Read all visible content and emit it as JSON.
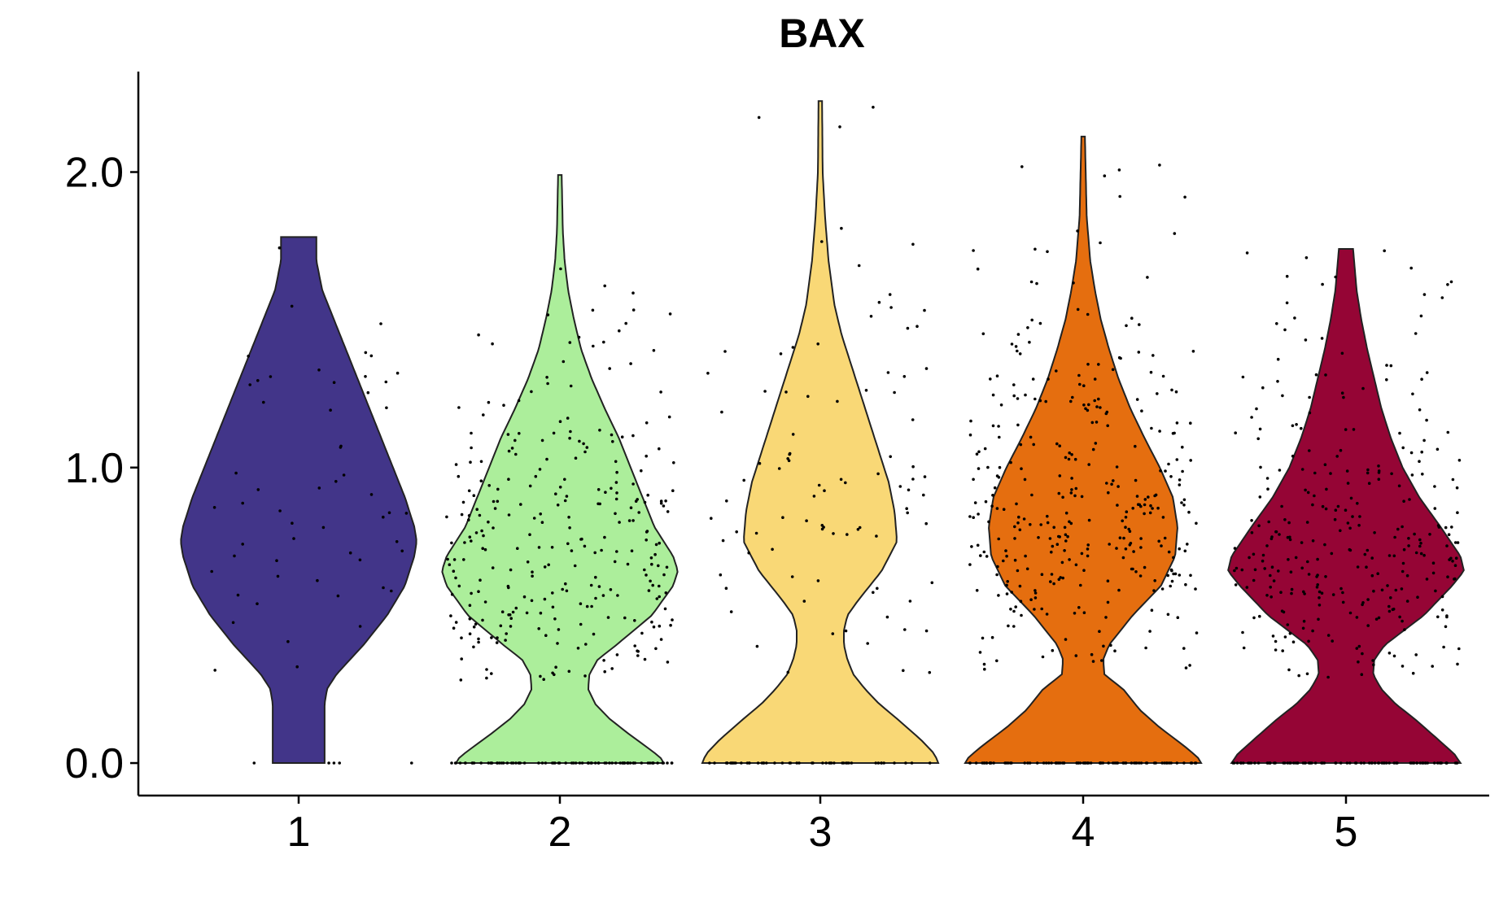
{
  "chart_data": {
    "type": "violin",
    "title": "BAX",
    "xlabel": "",
    "ylabel": "",
    "ylim": [
      -0.11,
      2.34
    ],
    "yticks": [
      0.0,
      1.0,
      2.0
    ],
    "ytick_labels": [
      "0.0",
      "1.0",
      "2.0"
    ],
    "categories": [
      "1",
      "2",
      "3",
      "4",
      "5"
    ],
    "grid": false,
    "legend": "none",
    "jitter_points": true,
    "groups": [
      {
        "category": "1",
        "color": "#423589",
        "max": 1.78,
        "n_points": 60,
        "zero_fraction": 0.08,
        "profile": [
          [
            0.0,
            0.22
          ],
          [
            0.1,
            0.22
          ],
          [
            0.2,
            0.22
          ],
          [
            0.25,
            0.24
          ],
          [
            0.3,
            0.32
          ],
          [
            0.4,
            0.55
          ],
          [
            0.5,
            0.75
          ],
          [
            0.6,
            0.9
          ],
          [
            0.7,
            0.98
          ],
          [
            0.75,
            1.0
          ],
          [
            0.8,
            0.98
          ],
          [
            0.9,
            0.9
          ],
          [
            1.0,
            0.8
          ],
          [
            1.1,
            0.7
          ],
          [
            1.2,
            0.6
          ],
          [
            1.3,
            0.5
          ],
          [
            1.4,
            0.4
          ],
          [
            1.5,
            0.3
          ],
          [
            1.6,
            0.2
          ],
          [
            1.7,
            0.15
          ],
          [
            1.78,
            0.15
          ]
        ]
      },
      {
        "category": "2",
        "color": "#ACEE9B",
        "max": 1.99,
        "n_points": 360,
        "zero_fraction": 0.22,
        "profile": [
          [
            0.0,
            0.88
          ],
          [
            0.02,
            0.85
          ],
          [
            0.05,
            0.75
          ],
          [
            0.1,
            0.58
          ],
          [
            0.15,
            0.42
          ],
          [
            0.2,
            0.3
          ],
          [
            0.25,
            0.24
          ],
          [
            0.3,
            0.25
          ],
          [
            0.35,
            0.32
          ],
          [
            0.4,
            0.48
          ],
          [
            0.5,
            0.78
          ],
          [
            0.6,
            0.96
          ],
          [
            0.65,
            1.0
          ],
          [
            0.7,
            0.96
          ],
          [
            0.8,
            0.8
          ],
          [
            0.9,
            0.7
          ],
          [
            1.0,
            0.6
          ],
          [
            1.1,
            0.5
          ],
          [
            1.2,
            0.38
          ],
          [
            1.3,
            0.27
          ],
          [
            1.4,
            0.18
          ],
          [
            1.5,
            0.12
          ],
          [
            1.6,
            0.07
          ],
          [
            1.7,
            0.04
          ],
          [
            1.8,
            0.025
          ],
          [
            1.99,
            0.015
          ]
        ]
      },
      {
        "category": "3",
        "color": "#F9D876",
        "max": 2.24,
        "n_points": 140,
        "zero_fraction": 0.35,
        "profile": [
          [
            0.0,
            1.0
          ],
          [
            0.03,
            0.97
          ],
          [
            0.08,
            0.85
          ],
          [
            0.15,
            0.65
          ],
          [
            0.2,
            0.5
          ],
          [
            0.25,
            0.38
          ],
          [
            0.3,
            0.28
          ],
          [
            0.35,
            0.23
          ],
          [
            0.4,
            0.2
          ],
          [
            0.45,
            0.2
          ],
          [
            0.5,
            0.23
          ],
          [
            0.55,
            0.32
          ],
          [
            0.65,
            0.52
          ],
          [
            0.75,
            0.65
          ],
          [
            0.85,
            0.63
          ],
          [
            0.95,
            0.58
          ],
          [
            1.05,
            0.5
          ],
          [
            1.15,
            0.42
          ],
          [
            1.25,
            0.34
          ],
          [
            1.35,
            0.26
          ],
          [
            1.45,
            0.18
          ],
          [
            1.55,
            0.12
          ],
          [
            1.7,
            0.07
          ],
          [
            1.85,
            0.04
          ],
          [
            2.0,
            0.02
          ],
          [
            2.24,
            0.015
          ]
        ]
      },
      {
        "category": "4",
        "color": "#E56E0F",
        "max": 2.12,
        "n_points": 420,
        "zero_fraction": 0.2,
        "profile": [
          [
            0.0,
            1.0
          ],
          [
            0.02,
            0.97
          ],
          [
            0.06,
            0.85
          ],
          [
            0.12,
            0.65
          ],
          [
            0.18,
            0.48
          ],
          [
            0.25,
            0.34
          ],
          [
            0.3,
            0.18
          ],
          [
            0.35,
            0.17
          ],
          [
            0.4,
            0.22
          ],
          [
            0.5,
            0.42
          ],
          [
            0.6,
            0.66
          ],
          [
            0.7,
            0.78
          ],
          [
            0.8,
            0.8
          ],
          [
            0.9,
            0.76
          ],
          [
            1.0,
            0.65
          ],
          [
            1.1,
            0.52
          ],
          [
            1.2,
            0.4
          ],
          [
            1.3,
            0.3
          ],
          [
            1.4,
            0.22
          ],
          [
            1.5,
            0.15
          ],
          [
            1.6,
            0.1
          ],
          [
            1.7,
            0.06
          ],
          [
            1.85,
            0.03
          ],
          [
            2.12,
            0.015
          ]
        ]
      },
      {
        "category": "5",
        "color": "#950535",
        "max": 1.74,
        "n_points": 380,
        "zero_fraction": 0.22,
        "profile": [
          [
            0.0,
            0.97
          ],
          [
            0.03,
            0.92
          ],
          [
            0.08,
            0.78
          ],
          [
            0.15,
            0.58
          ],
          [
            0.2,
            0.42
          ],
          [
            0.25,
            0.3
          ],
          [
            0.3,
            0.23
          ],
          [
            0.35,
            0.24
          ],
          [
            0.4,
            0.33
          ],
          [
            0.5,
            0.66
          ],
          [
            0.6,
            0.9
          ],
          [
            0.65,
            1.0
          ],
          [
            0.7,
            0.97
          ],
          [
            0.8,
            0.8
          ],
          [
            0.9,
            0.62
          ],
          [
            1.0,
            0.48
          ],
          [
            1.1,
            0.38
          ],
          [
            1.2,
            0.3
          ],
          [
            1.3,
            0.24
          ],
          [
            1.4,
            0.18
          ],
          [
            1.5,
            0.13
          ],
          [
            1.6,
            0.09
          ],
          [
            1.74,
            0.06
          ]
        ]
      }
    ]
  }
}
